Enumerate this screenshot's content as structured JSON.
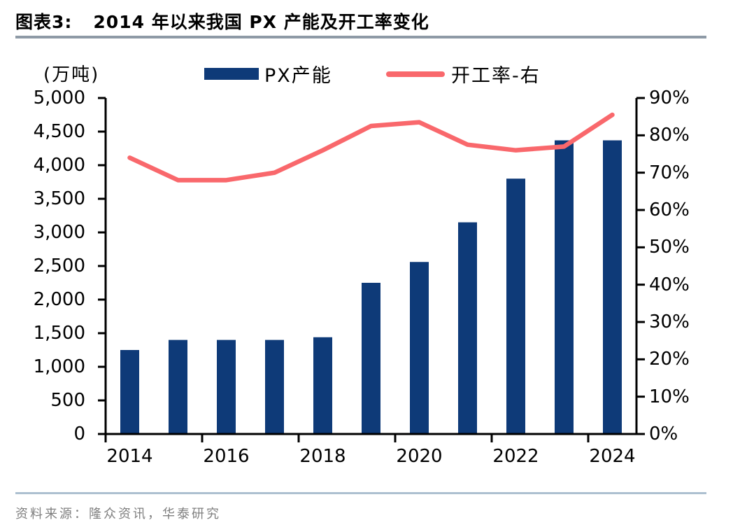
{
  "title": {
    "prefix": "图表3:",
    "text": "2014 年以来我国 PX 产能及开工率变化"
  },
  "legend": {
    "unit_label": "(万吨)",
    "bar_label": "PX产能",
    "line_label": "开工率-右"
  },
  "source": "资料来源：隆众资讯，华泰研究",
  "colors": {
    "bar": "#0e3a78",
    "line": "#f9686c",
    "axis": "#000000",
    "title_divider": "#8e9aa6",
    "footer_divider": "#adc0d0",
    "source_text": "#7f7f7f"
  },
  "chart_data": {
    "type": "bar+line",
    "title": "2014 年以来我国 PX 产能及开工率变化",
    "categories": [
      "2014",
      "2015",
      "2016",
      "2017",
      "2018",
      "2019",
      "2020",
      "2021",
      "2022",
      "2023",
      "2024"
    ],
    "series": [
      {
        "name": "PX产能",
        "type": "bar",
        "axis": "left",
        "unit": "万吨",
        "values": [
          1250,
          1400,
          1400,
          1400,
          1440,
          2250,
          2560,
          3150,
          3800,
          4370,
          4370
        ]
      },
      {
        "name": "开工率-右",
        "type": "line",
        "axis": "right",
        "unit": "%",
        "values": [
          74,
          68,
          68,
          70,
          76,
          82.5,
          83.5,
          77.5,
          76,
          77,
          85.5
        ]
      }
    ],
    "left_axis": {
      "min": 0,
      "max": 5000,
      "step": 500,
      "label": "(万吨)"
    },
    "right_axis": {
      "min": 0,
      "max": 90,
      "step": 10,
      "suffix": "%"
    },
    "x_label_step": 2,
    "grid": false,
    "legend_position": "top"
  }
}
